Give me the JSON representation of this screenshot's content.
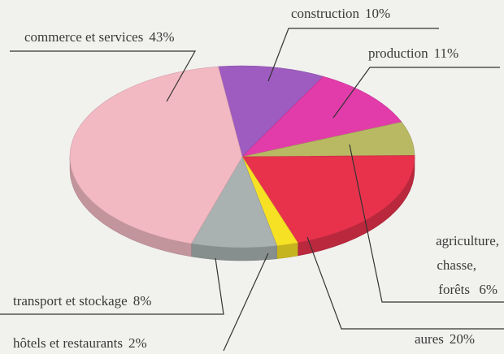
{
  "chart_data": {
    "type": "pie",
    "categories": [
      "construction",
      "production",
      "agriculture, chasse, forêts",
      "aures",
      "hôtels et restaurants",
      "transport et stockage",
      "commerce et services"
    ],
    "values": [
      10,
      11,
      6,
      20,
      2,
      8,
      43
    ],
    "value_labels": [
      "10%",
      "11%",
      "6%",
      "20%",
      "2%",
      "8%",
      "43%"
    ],
    "colors": [
      "#9e5cc0",
      "#e23caa",
      "#b9b963",
      "#e8324c",
      "#f7e125",
      "#a9b1b1",
      "#f3b9c2"
    ]
  }
}
